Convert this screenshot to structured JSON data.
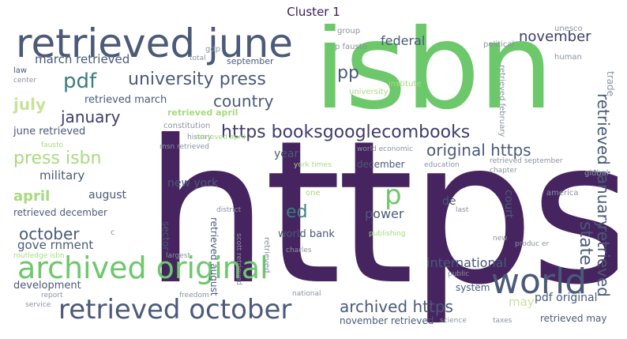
{
  "title": "Cluster 1",
  "palette": {
    "purple": "#46245f",
    "indigo": "#3e3c6a",
    "slate": "#4a5a78",
    "teal": "#3b7d80",
    "green": "#6cc86a",
    "lightgreen": "#a8da7e",
    "yellowgreen": "#c8e29a",
    "grey": "#8a93a2"
  },
  "words": [
    {
      "text": "https",
      "color": "purple",
      "rotated": false
    },
    {
      "text": "isbn",
      "color": "green",
      "rotated": false
    },
    {
      "text": "retrieved june",
      "color": "slate",
      "rotated": false
    },
    {
      "text": "archived original",
      "color": "green",
      "rotated": false
    },
    {
      "text": "world",
      "color": "slate",
      "rotated": false
    },
    {
      "text": "retrieved october",
      "color": "slate",
      "rotated": false
    },
    {
      "text": "https booksgooglecombooks",
      "color": "indigo",
      "rotated": false
    },
    {
      "text": "pdf",
      "color": "teal",
      "rotated": false
    },
    {
      "text": "university press",
      "color": "slate",
      "rotated": false
    },
    {
      "text": "november",
      "color": "indigo",
      "rotated": false
    },
    {
      "text": "country",
      "color": "slate",
      "rotated": false
    },
    {
      "text": "january",
      "color": "indigo",
      "rotated": false
    },
    {
      "text": "press isbn",
      "color": "lightgreen",
      "rotated": false
    },
    {
      "text": "original https",
      "color": "slate",
      "rotated": false
    },
    {
      "text": "archived https",
      "color": "slate",
      "rotated": false
    },
    {
      "text": "october",
      "color": "slate",
      "rotated": false
    },
    {
      "text": "july",
      "color": "yellowgreen",
      "rotated": false
    },
    {
      "text": "april",
      "color": "lightgreen",
      "rotated": false
    },
    {
      "text": "retrieved january",
      "color": "slate",
      "rotated": true
    },
    {
      "text": "retrieved",
      "color": "slate",
      "rotated": true
    },
    {
      "text": "state",
      "color": "slate",
      "rotated": true
    },
    {
      "text": "p",
      "color": "green",
      "rotated": false
    },
    {
      "text": "pp",
      "color": "slate",
      "rotated": false
    },
    {
      "text": "ed",
      "color": "teal",
      "rotated": false
    },
    {
      "text": "federal",
      "color": "slate",
      "rotated": false
    },
    {
      "text": "march retrieved",
      "color": "slate",
      "rotated": false
    },
    {
      "text": "retrieved march",
      "color": "slate",
      "rotated": false
    },
    {
      "text": "june retrieved",
      "color": "slate",
      "rotated": false
    },
    {
      "text": "military",
      "color": "slate",
      "rotated": false
    },
    {
      "text": "august",
      "color": "slate",
      "rotated": false
    },
    {
      "text": "retrieved december",
      "color": "slate",
      "rotated": false
    },
    {
      "text": "gove rnment",
      "color": "slate",
      "rotated": false
    },
    {
      "text": "new york",
      "color": "slate",
      "rotated": false
    },
    {
      "text": "year",
      "color": "slate",
      "rotated": false
    },
    {
      "text": "power",
      "color": "slate",
      "rotated": false
    },
    {
      "text": "world bank",
      "color": "slate",
      "rotated": false
    },
    {
      "text": "international",
      "color": "slate",
      "rotated": false
    },
    {
      "text": "de",
      "color": "slate",
      "rotated": false
    },
    {
      "text": "court",
      "color": "slate",
      "rotated": true
    },
    {
      "text": "may",
      "color": "yellowgreen",
      "rotated": false
    },
    {
      "text": "pdf original",
      "color": "slate",
      "rotated": false
    },
    {
      "text": "retrieved may",
      "color": "slate",
      "rotated": false
    },
    {
      "text": "november retrieved",
      "color": "slate",
      "rotated": false
    },
    {
      "text": "development",
      "color": "slate",
      "rotated": false
    },
    {
      "text": "september",
      "color": "slate",
      "rotated": false
    },
    {
      "text": "retrieved august",
      "color": "slate",
      "rotated": true
    },
    {
      "text": "sector",
      "color": "slate",
      "rotated": true
    },
    {
      "text": "system",
      "color": "slate",
      "rotated": false
    },
    {
      "text": "december",
      "color": "slate",
      "rotated": false
    },
    {
      "text": "retrieved april",
      "color": "lightgreen",
      "rotated": false
    },
    {
      "text": "university",
      "color": "lightgreen",
      "rotated": false
    },
    {
      "text": "trade",
      "color": "grey",
      "rotated": true
    },
    {
      "text": "political",
      "color": "grey",
      "rotated": false
    },
    {
      "text": "group",
      "color": "grey",
      "rotated": false
    },
    {
      "text": "p fausto",
      "color": "grey",
      "rotated": false
    },
    {
      "text": "unesco",
      "color": "grey",
      "rotated": false
    },
    {
      "text": "human",
      "color": "grey",
      "rotated": false
    },
    {
      "text": "institute",
      "color": "lightgreen",
      "rotated": false
    },
    {
      "text": "retrieved february",
      "color": "grey",
      "rotated": true
    },
    {
      "text": "gdp",
      "color": "grey",
      "rotated": false
    },
    {
      "text": "total",
      "color": "grey",
      "rotated": false
    },
    {
      "text": "law",
      "color": "slate",
      "rotated": false
    },
    {
      "text": "center",
      "color": "grey",
      "rotated": false
    },
    {
      "text": "constitution",
      "color": "grey",
      "rotated": false
    },
    {
      "text": "history",
      "color": "grey",
      "rotated": false
    },
    {
      "text": "msn retrieved",
      "color": "grey",
      "rotated": false
    },
    {
      "text": "fausto",
      "color": "lightgreen",
      "rotated": false
    },
    {
      "text": "world economic",
      "color": "grey",
      "rotated": false
    },
    {
      "text": "york times",
      "color": "lightgreen",
      "rotated": false
    },
    {
      "text": "education",
      "color": "grey",
      "rotated": false
    },
    {
      "text": "retrieved september",
      "color": "grey",
      "rotated": false
    },
    {
      "text": "chapter",
      "color": "grey",
      "rotated": false
    },
    {
      "text": "global",
      "color": "grey",
      "rotated": false
    },
    {
      "text": "america",
      "color": "grey",
      "rotated": false
    },
    {
      "text": "one",
      "color": "lightgreen",
      "rotated": false
    },
    {
      "text": "last",
      "color": "grey",
      "rotated": false
    },
    {
      "text": "produc er",
      "color": "grey",
      "rotated": false
    },
    {
      "text": "new",
      "color": "grey",
      "rotated": false
    },
    {
      "text": "publishing",
      "color": "lightgreen",
      "rotated": false
    },
    {
      "text": "c",
      "color": "grey",
      "rotated": false
    },
    {
      "text": "routledge isbn",
      "color": "lightgreen",
      "rotated": false
    },
    {
      "text": "largest",
      "color": "grey",
      "rotated": false
    },
    {
      "text": "charles",
      "color": "grey",
      "rotated": false
    },
    {
      "text": "public",
      "color": "grey",
      "rotated": false
    },
    {
      "text": "report",
      "color": "grey",
      "rotated": false
    },
    {
      "text": "service",
      "color": "grey",
      "rotated": false
    },
    {
      "text": "freedom",
      "color": "grey",
      "rotated": false
    },
    {
      "text": "national",
      "color": "grey",
      "rotated": false
    },
    {
      "text": "science",
      "color": "grey",
      "rotated": false
    },
    {
      "text": "taxes",
      "color": "grey",
      "rotated": false
    },
    {
      "text": "retrieved april",
      "color": "lightgreen",
      "rotated": false
    },
    {
      "text": "scott retrieved",
      "color": "grey",
      "rotated": true
    },
    {
      "text": "retrieved",
      "color": "grey",
      "rotated": true
    },
    {
      "text": "district",
      "color": "grey",
      "rotated": false
    }
  ]
}
